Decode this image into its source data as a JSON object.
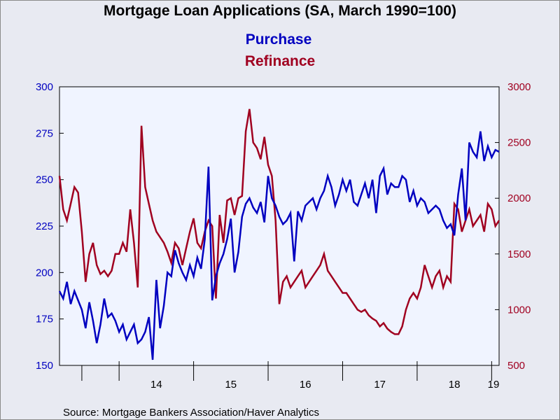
{
  "chart_data": {
    "type": "line",
    "title": "Mortgage Loan Applications (SA, March 1990=100)",
    "source": "Source:  Mortgage Bankers Association/Haver Analytics",
    "x_ticks": [
      "14",
      "15",
      "16",
      "17",
      "18",
      "19"
    ],
    "x_range": [
      2013.2,
      2019.1
    ],
    "left_axis": {
      "range": [
        150,
        300
      ],
      "ticks": [
        150,
        175,
        200,
        225,
        250,
        275,
        300
      ],
      "color": "#0000c0"
    },
    "right_axis": {
      "range": [
        500,
        3000
      ],
      "ticks": [
        500,
        1000,
        1500,
        2000,
        2500,
        3000
      ],
      "color": "#a00020"
    },
    "plot_background": "#f0f4ff",
    "grid": false,
    "legend_position": "top-center",
    "series": [
      {
        "name": "Purchase",
        "axis": "left",
        "color": "#0000c0",
        "x": [
          2013.2,
          2013.25,
          2013.3,
          2013.35,
          2013.4,
          2013.45,
          2013.5,
          2013.55,
          2013.6,
          2013.65,
          2013.7,
          2013.75,
          2013.8,
          2013.85,
          2013.9,
          2013.95,
          2014.0,
          2014.05,
          2014.1,
          2014.15,
          2014.2,
          2014.25,
          2014.3,
          2014.35,
          2014.4,
          2014.45,
          2014.5,
          2014.55,
          2014.6,
          2014.65,
          2014.7,
          2014.75,
          2014.8,
          2014.85,
          2014.9,
          2014.95,
          2015.0,
          2015.05,
          2015.1,
          2015.15,
          2015.2,
          2015.25,
          2015.3,
          2015.35,
          2015.4,
          2015.45,
          2015.5,
          2015.55,
          2015.6,
          2015.65,
          2015.7,
          2015.75,
          2015.8,
          2015.85,
          2015.9,
          2015.95,
          2016.0,
          2016.05,
          2016.1,
          2016.15,
          2016.2,
          2016.25,
          2016.3,
          2016.35,
          2016.4,
          2016.45,
          2016.5,
          2016.55,
          2016.6,
          2016.65,
          2016.7,
          2016.75,
          2016.8,
          2016.85,
          2016.9,
          2016.95,
          2017.0,
          2017.05,
          2017.1,
          2017.15,
          2017.2,
          2017.25,
          2017.3,
          2017.35,
          2017.4,
          2017.45,
          2017.5,
          2017.55,
          2017.6,
          2017.65,
          2017.7,
          2017.75,
          2017.8,
          2017.85,
          2017.9,
          2017.95,
          2018.0,
          2018.05,
          2018.1,
          2018.15,
          2018.2,
          2018.25,
          2018.3,
          2018.35,
          2018.4,
          2018.45,
          2018.5,
          2018.55,
          2018.6,
          2018.65,
          2018.7,
          2018.75,
          2018.8,
          2018.85,
          2018.9,
          2018.95,
          2019.0,
          2019.05,
          2019.1
        ],
        "values": [
          190,
          186,
          195,
          183,
          190,
          185,
          180,
          170,
          184,
          174,
          162,
          172,
          186,
          176,
          178,
          174,
          168,
          172,
          164,
          168,
          172,
          162,
          164,
          168,
          176,
          153,
          196,
          170,
          182,
          200,
          198,
          212,
          205,
          200,
          196,
          204,
          198,
          208,
          202,
          218,
          257,
          185,
          198,
          205,
          210,
          218,
          229,
          200,
          211,
          230,
          237,
          240,
          235,
          232,
          238,
          227,
          252,
          240,
          236,
          230,
          226,
          228,
          232,
          206,
          233,
          228,
          236,
          238,
          240,
          234,
          240,
          244,
          252,
          246,
          236,
          242,
          250,
          244,
          250,
          238,
          236,
          242,
          248,
          240,
          250,
          232,
          252,
          256,
          242,
          248,
          246,
          246,
          252,
          250,
          238,
          244,
          236,
          240,
          238,
          232,
          234,
          236,
          234,
          228,
          224,
          226,
          220,
          242,
          256,
          228,
          270,
          265,
          262,
          276,
          260,
          268,
          262,
          266,
          265
        ]
      },
      {
        "name": "Refinance",
        "axis": "right",
        "color": "#a00020",
        "x": [
          2013.2,
          2013.25,
          2013.3,
          2013.35,
          2013.4,
          2013.45,
          2013.5,
          2013.55,
          2013.6,
          2013.65,
          2013.7,
          2013.75,
          2013.8,
          2013.85,
          2013.9,
          2013.95,
          2014.0,
          2014.05,
          2014.1,
          2014.15,
          2014.2,
          2014.25,
          2014.3,
          2014.35,
          2014.4,
          2014.45,
          2014.5,
          2014.55,
          2014.6,
          2014.65,
          2014.7,
          2014.75,
          2014.8,
          2014.85,
          2014.9,
          2014.95,
          2015.0,
          2015.05,
          2015.1,
          2015.15,
          2015.2,
          2015.25,
          2015.3,
          2015.35,
          2015.4,
          2015.45,
          2015.5,
          2015.55,
          2015.6,
          2015.65,
          2015.7,
          2015.75,
          2015.8,
          2015.85,
          2015.9,
          2015.95,
          2016.0,
          2016.05,
          2016.1,
          2016.15,
          2016.2,
          2016.25,
          2016.3,
          2016.35,
          2016.4,
          2016.45,
          2016.5,
          2016.55,
          2016.6,
          2016.65,
          2016.7,
          2016.75,
          2016.8,
          2016.85,
          2016.9,
          2016.95,
          2017.0,
          2017.05,
          2017.1,
          2017.15,
          2017.2,
          2017.25,
          2017.3,
          2017.35,
          2017.4,
          2017.45,
          2017.5,
          2017.55,
          2017.6,
          2017.65,
          2017.7,
          2017.75,
          2017.8,
          2017.85,
          2017.9,
          2017.95,
          2018.0,
          2018.05,
          2018.1,
          2018.15,
          2018.2,
          2018.25,
          2018.3,
          2018.35,
          2018.4,
          2018.45,
          2018.5,
          2018.55,
          2018.6,
          2018.65,
          2018.7,
          2018.75,
          2018.8,
          2018.85,
          2018.9,
          2018.95,
          2019.0,
          2019.05,
          2019.1
        ],
        "values": [
          2200,
          1900,
          1800,
          1950,
          2100,
          2050,
          1700,
          1250,
          1500,
          1600,
          1400,
          1320,
          1350,
          1300,
          1350,
          1500,
          1500,
          1600,
          1520,
          1900,
          1600,
          1200,
          2650,
          2100,
          1950,
          1800,
          1700,
          1650,
          1600,
          1520,
          1420,
          1600,
          1550,
          1400,
          1550,
          1700,
          1820,
          1600,
          1550,
          1700,
          1800,
          1750,
          1100,
          1850,
          1600,
          1980,
          2000,
          1850,
          2000,
          2020,
          2600,
          2800,
          2500,
          2450,
          2350,
          2550,
          2300,
          2200,
          1800,
          1050,
          1250,
          1300,
          1200,
          1250,
          1300,
          1350,
          1200,
          1250,
          1300,
          1350,
          1400,
          1500,
          1350,
          1300,
          1250,
          1200,
          1150,
          1150,
          1100,
          1050,
          1000,
          980,
          1000,
          950,
          920,
          900,
          850,
          880,
          830,
          800,
          780,
          780,
          850,
          1000,
          1100,
          1150,
          1100,
          1200,
          1400,
          1300,
          1200,
          1300,
          1350,
          1200,
          1300,
          1250,
          1950,
          1900,
          1700,
          1800,
          1900,
          1750,
          1800,
          1850,
          1700,
          1950,
          1900,
          1750,
          1800
        ]
      }
    ]
  }
}
